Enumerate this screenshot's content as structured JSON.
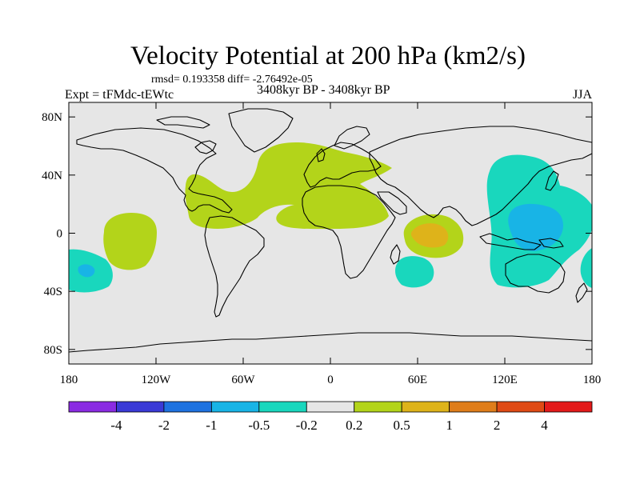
{
  "header": {
    "title": "Velocity Potential at 200 hPa (km2/s)",
    "stats": "rmsd= 0.193358 diff= -2.76492e-05",
    "left": "Expt = tFMdc-tEWtc",
    "center": "3408kyr BP - 3408kyr BP",
    "right": "JJA"
  },
  "map": {
    "background_color": "#e6e6e6",
    "coastline_color": "#000000",
    "x_ticks": [
      {
        "lon": -180,
        "label": "180"
      },
      {
        "lon": -120,
        "label": "120W"
      },
      {
        "lon": -60,
        "label": "60W"
      },
      {
        "lon": 0,
        "label": "0"
      },
      {
        "lon": 60,
        "label": "60E"
      },
      {
        "lon": 120,
        "label": "120E"
      },
      {
        "lon": 180,
        "label": "180"
      }
    ],
    "y_ticks": [
      {
        "lat": 80,
        "label": "80N"
      },
      {
        "lat": 40,
        "label": "40N"
      },
      {
        "lat": 0,
        "label": "0"
      },
      {
        "lat": -40,
        "label": "40S"
      },
      {
        "lat": -80,
        "label": "80S"
      }
    ]
  },
  "colorbar": {
    "colors": [
      "#8a2be2",
      "#3a3ad6",
      "#1e72e0",
      "#18b4e6",
      "#19d7bd",
      "#e6e6e6",
      "#b3d41a",
      "#deb31a",
      "#df7d1a",
      "#df4a14",
      "#e31a1a"
    ],
    "labels": [
      "-4",
      "-2",
      "-1",
      "-0.5",
      "-0.2",
      "0.2",
      "0.5",
      "1",
      "2",
      "4"
    ]
  },
  "legend_colors": {
    "neg_light": "#19d7bd",
    "neg_mid": "#18b4e6",
    "pos_light": "#b3d41a",
    "pos_mid": "#deb31a"
  }
}
